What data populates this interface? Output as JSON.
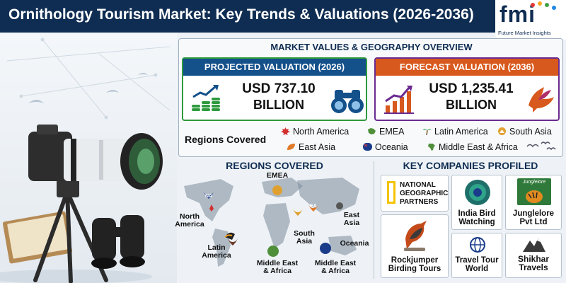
{
  "header": {
    "title": "Ornithology Tourism Market: Key Trends & Valuations (2026-2036)",
    "logo_text": "fmi",
    "logo_subtitle": "Future Market Insights"
  },
  "overview": {
    "title": "MARKET VALUES & GEOGRAPHY OVERVIEW",
    "projected": {
      "label": "PROJECTED VALUATION (2026)",
      "amount": "USD 737.10",
      "unit": "BILLION"
    },
    "forecast": {
      "label": "FORECAST VALUATION (2036)",
      "amount": "USD 1,235.41",
      "unit": "BILLION"
    },
    "regions_label": "Regions Covered",
    "regions": [
      "North America",
      "EMEA",
      "Latin America",
      "South Asia",
      "East Asia",
      "Oceania",
      "Middle East & Africa"
    ]
  },
  "map": {
    "title": "REGIONS COVERED",
    "labels": {
      "emea": "EMEA",
      "north_america": "North America",
      "east_asia": "East Asia",
      "south_asia": "South Asia",
      "latin_america": "Latin America",
      "oceania": "Oceania",
      "mea_1": "Middle East & Africa",
      "mea_2": "Middle East & Africa"
    },
    "pins": {
      "na": "NA",
      "ea": "EA"
    }
  },
  "companies": {
    "title": "KEY COMPANIES PROFILED",
    "items": [
      "NATIONAL GEOGRAPHIC PARTNERS",
      "India Bird Watching",
      "Junglelore Pvt Ltd",
      "Rockjumper Birding Tours",
      "Travel Tour World",
      "Shikhar Travels"
    ],
    "junglelore_logo": "Junglelore"
  },
  "colors": {
    "navy": "#0f2d52",
    "green": "#2f9a3e",
    "purple": "#6a2b90",
    "blue": "#14508a",
    "orange": "#d8591d"
  }
}
